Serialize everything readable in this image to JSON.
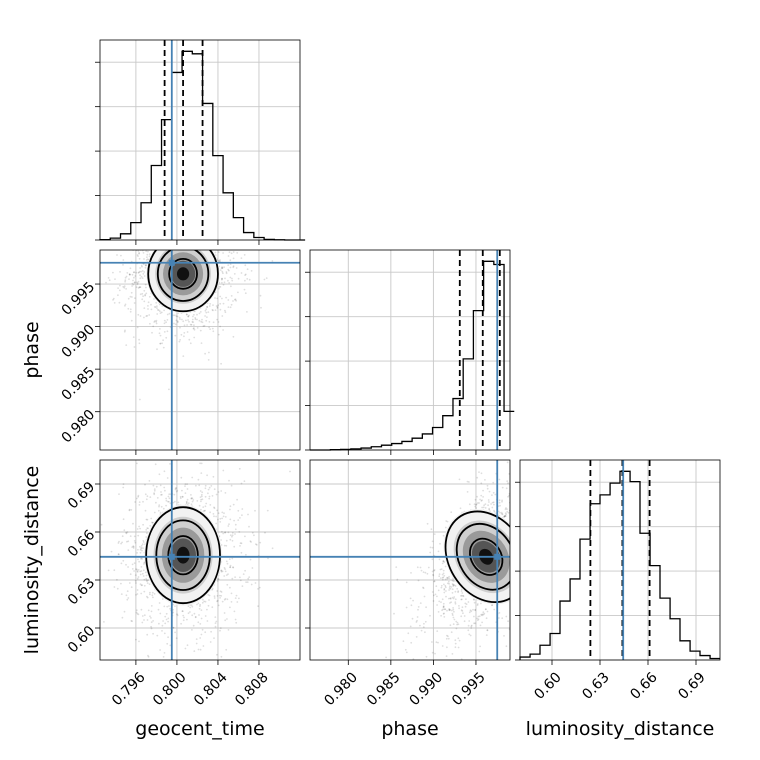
{
  "chart_data": {
    "type": "corner",
    "parameters": [
      "geocent_time",
      "phase",
      "luminosity_distance"
    ],
    "truths": [
      0.7995,
      0.9975,
      0.6445
    ],
    "quantiles": [
      [
        0.7988,
        0.8006,
        0.8025
      ],
      [
        0.9931,
        0.9958,
        0.9978
      ],
      [
        0.624,
        0.644,
        0.661
      ]
    ],
    "ranges": [
      [
        0.7925,
        0.812
      ],
      [
        0.9755,
        0.999
      ],
      [
        0.58,
        0.705
      ]
    ],
    "ticks": [
      {
        "values": [
          0.796,
          0.8,
          0.804,
          0.808
        ],
        "labels": [
          "0.796",
          "0.800",
          "0.804",
          "0.808"
        ]
      },
      {
        "values": [
          0.98,
          0.985,
          0.99,
          0.995
        ],
        "labels": [
          "0.980",
          "0.985",
          "0.990",
          "0.995"
        ]
      },
      {
        "values": [
          0.6,
          0.63,
          0.66,
          0.69
        ],
        "labels": [
          "0.60",
          "0.63",
          "0.66",
          "0.69"
        ]
      }
    ],
    "histograms": [
      {
        "bins": [
          0.7925,
          0.7935,
          0.7945,
          0.7955,
          0.7965,
          0.7975,
          0.7985,
          0.7995,
          0.8005,
          0.8015,
          0.8025,
          0.8035,
          0.8045,
          0.8055,
          0.8065,
          0.8075,
          0.8085,
          0.8095,
          0.8105,
          0.8115,
          0.8125
        ],
        "counts": [
          0.3,
          1.5,
          5,
          14,
          30,
          60,
          97,
          135,
          152,
          150,
          110,
          68,
          38,
          18,
          6,
          2,
          0.5,
          0.2,
          0,
          0
        ]
      },
      {
        "bins": [
          0.9755,
          0.9767,
          0.9779,
          0.9791,
          0.9803,
          0.9815,
          0.9827,
          0.9839,
          0.9851,
          0.9863,
          0.9875,
          0.9887,
          0.9899,
          0.9911,
          0.9923,
          0.9935,
          0.9947,
          0.9959,
          0.9971,
          0.9983,
          0.9995
        ],
        "counts": [
          0,
          0,
          0.3,
          0.6,
          1,
          1.8,
          3,
          4.5,
          6,
          8,
          11,
          15,
          21,
          32,
          48,
          85,
          130,
          176,
          173,
          36
        ]
      },
      {
        "bins": [
          0.58,
          0.5863,
          0.5925,
          0.5988,
          0.605,
          0.6113,
          0.6175,
          0.6238,
          0.63,
          0.6363,
          0.6425,
          0.6488,
          0.655,
          0.6613,
          0.6675,
          0.6738,
          0.68,
          0.6863,
          0.6925,
          0.6988,
          0.705
        ],
        "counts": [
          2,
          4,
          10,
          18,
          40,
          55,
          82,
          106,
          112,
          120,
          128,
          121,
          86,
          64,
          42,
          28,
          13,
          6,
          3,
          1
        ]
      }
    ],
    "pairs": [
      {
        "x": 0,
        "y": 1,
        "mean": [
          0.8006,
          0.9962
        ],
        "sd": [
          0.0017,
          0.0022
        ],
        "rho": 0.0
      },
      {
        "x": 0,
        "y": 2,
        "mean": [
          0.8006,
          0.6455
        ],
        "sd": [
          0.0018,
          0.015
        ],
        "rho": 0.0
      },
      {
        "x": 1,
        "y": 2,
        "mean": [
          0.9962,
          0.6445
        ],
        "sd": [
          0.0022,
          0.015
        ],
        "rho": 0.55
      }
    ],
    "grid": true
  }
}
